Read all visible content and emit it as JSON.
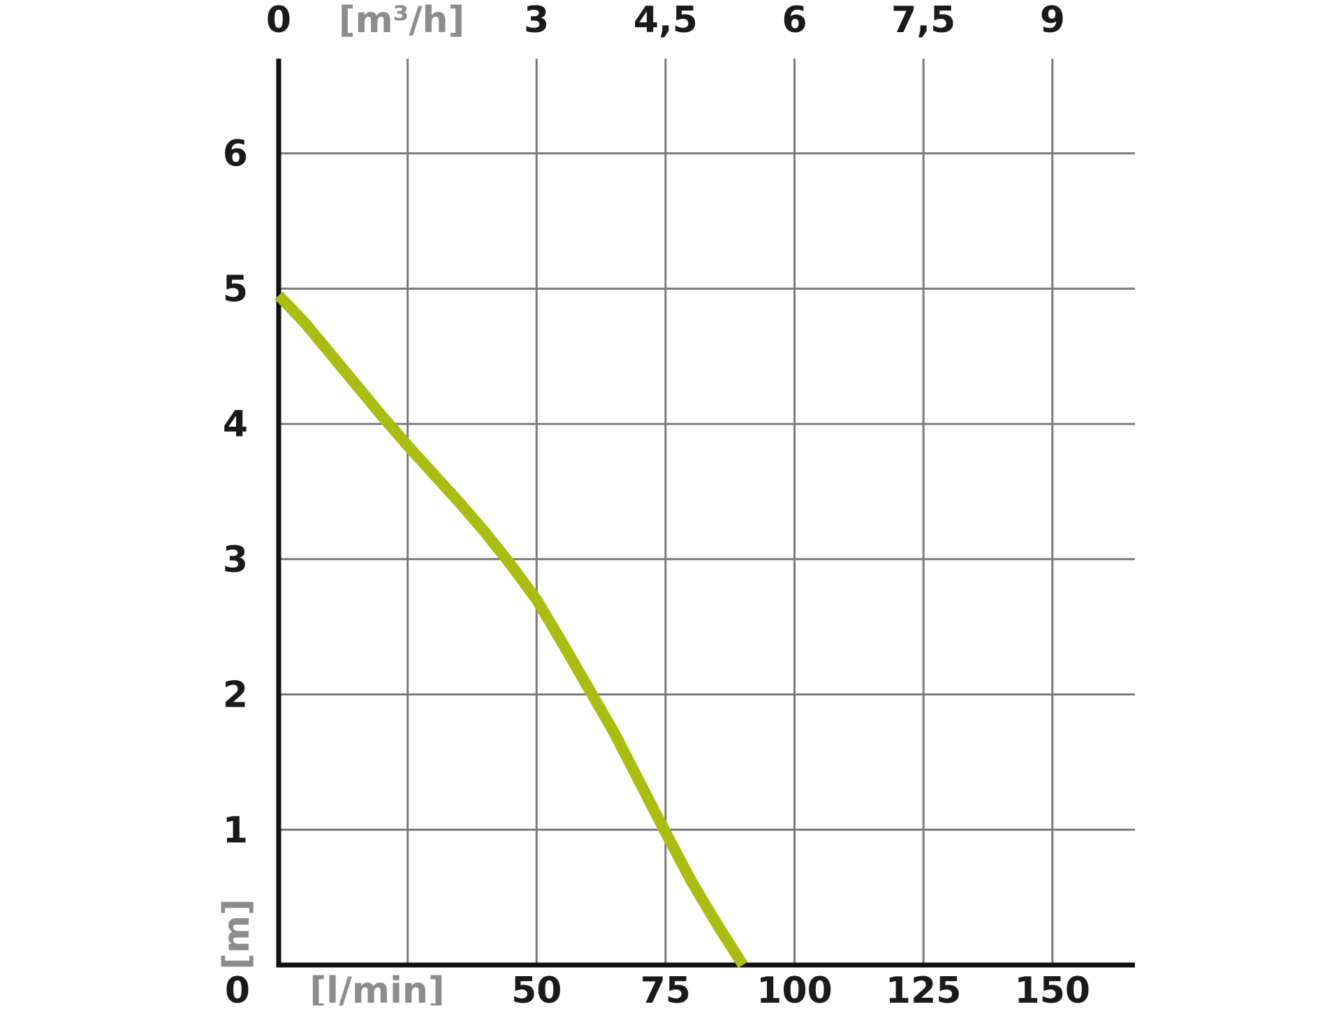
{
  "chart_data": {
    "type": "line",
    "x_bottom": {
      "unit_label": "[l/min]",
      "ticks": [
        {
          "value": 0,
          "label": "0"
        },
        {
          "value": 50,
          "label": "50"
        },
        {
          "value": 75,
          "label": "75"
        },
        {
          "value": 100,
          "label": "100"
        },
        {
          "value": 125,
          "label": "125"
        },
        {
          "value": 150,
          "label": "150"
        }
      ],
      "range": [
        0,
        166
      ]
    },
    "x_top": {
      "unit_label": "[m³/h]",
      "ticks": [
        {
          "value": 0,
          "label": "0"
        },
        {
          "value": 50,
          "label": "3"
        },
        {
          "value": 75,
          "label": "4,5"
        },
        {
          "value": 100,
          "label": "6"
        },
        {
          "value": 125,
          "label": "7,5"
        },
        {
          "value": 150,
          "label": "9"
        }
      ]
    },
    "y": {
      "unit_label": "[m]",
      "ticks": [
        {
          "value": 1,
          "label": "1"
        },
        {
          "value": 2,
          "label": "2"
        },
        {
          "value": 3,
          "label": "3"
        },
        {
          "value": 4,
          "label": "4"
        },
        {
          "value": 5,
          "label": "5"
        },
        {
          "value": 6,
          "label": "6"
        }
      ],
      "range": [
        0,
        6.7
      ]
    },
    "grid": {
      "x_lines": [
        25,
        50,
        75,
        100,
        125,
        150
      ],
      "y_lines": [
        1,
        2,
        3,
        4,
        5,
        6
      ]
    },
    "series": [
      {
        "color": "#aabd12",
        "points": [
          [
            0,
            4.95
          ],
          [
            5,
            4.75
          ],
          [
            10,
            4.52
          ],
          [
            15,
            4.29
          ],
          [
            20,
            4.06
          ],
          [
            25,
            3.84
          ],
          [
            30,
            3.63
          ],
          [
            35,
            3.42
          ],
          [
            40,
            3.2
          ],
          [
            45,
            2.96
          ],
          [
            50,
            2.7
          ],
          [
            55,
            2.38
          ],
          [
            60,
            2.05
          ],
          [
            65,
            1.72
          ],
          [
            70,
            1.35
          ],
          [
            75,
            0.98
          ],
          [
            80,
            0.62
          ],
          [
            85,
            0.3
          ],
          [
            90,
            0.0
          ]
        ]
      }
    ]
  }
}
